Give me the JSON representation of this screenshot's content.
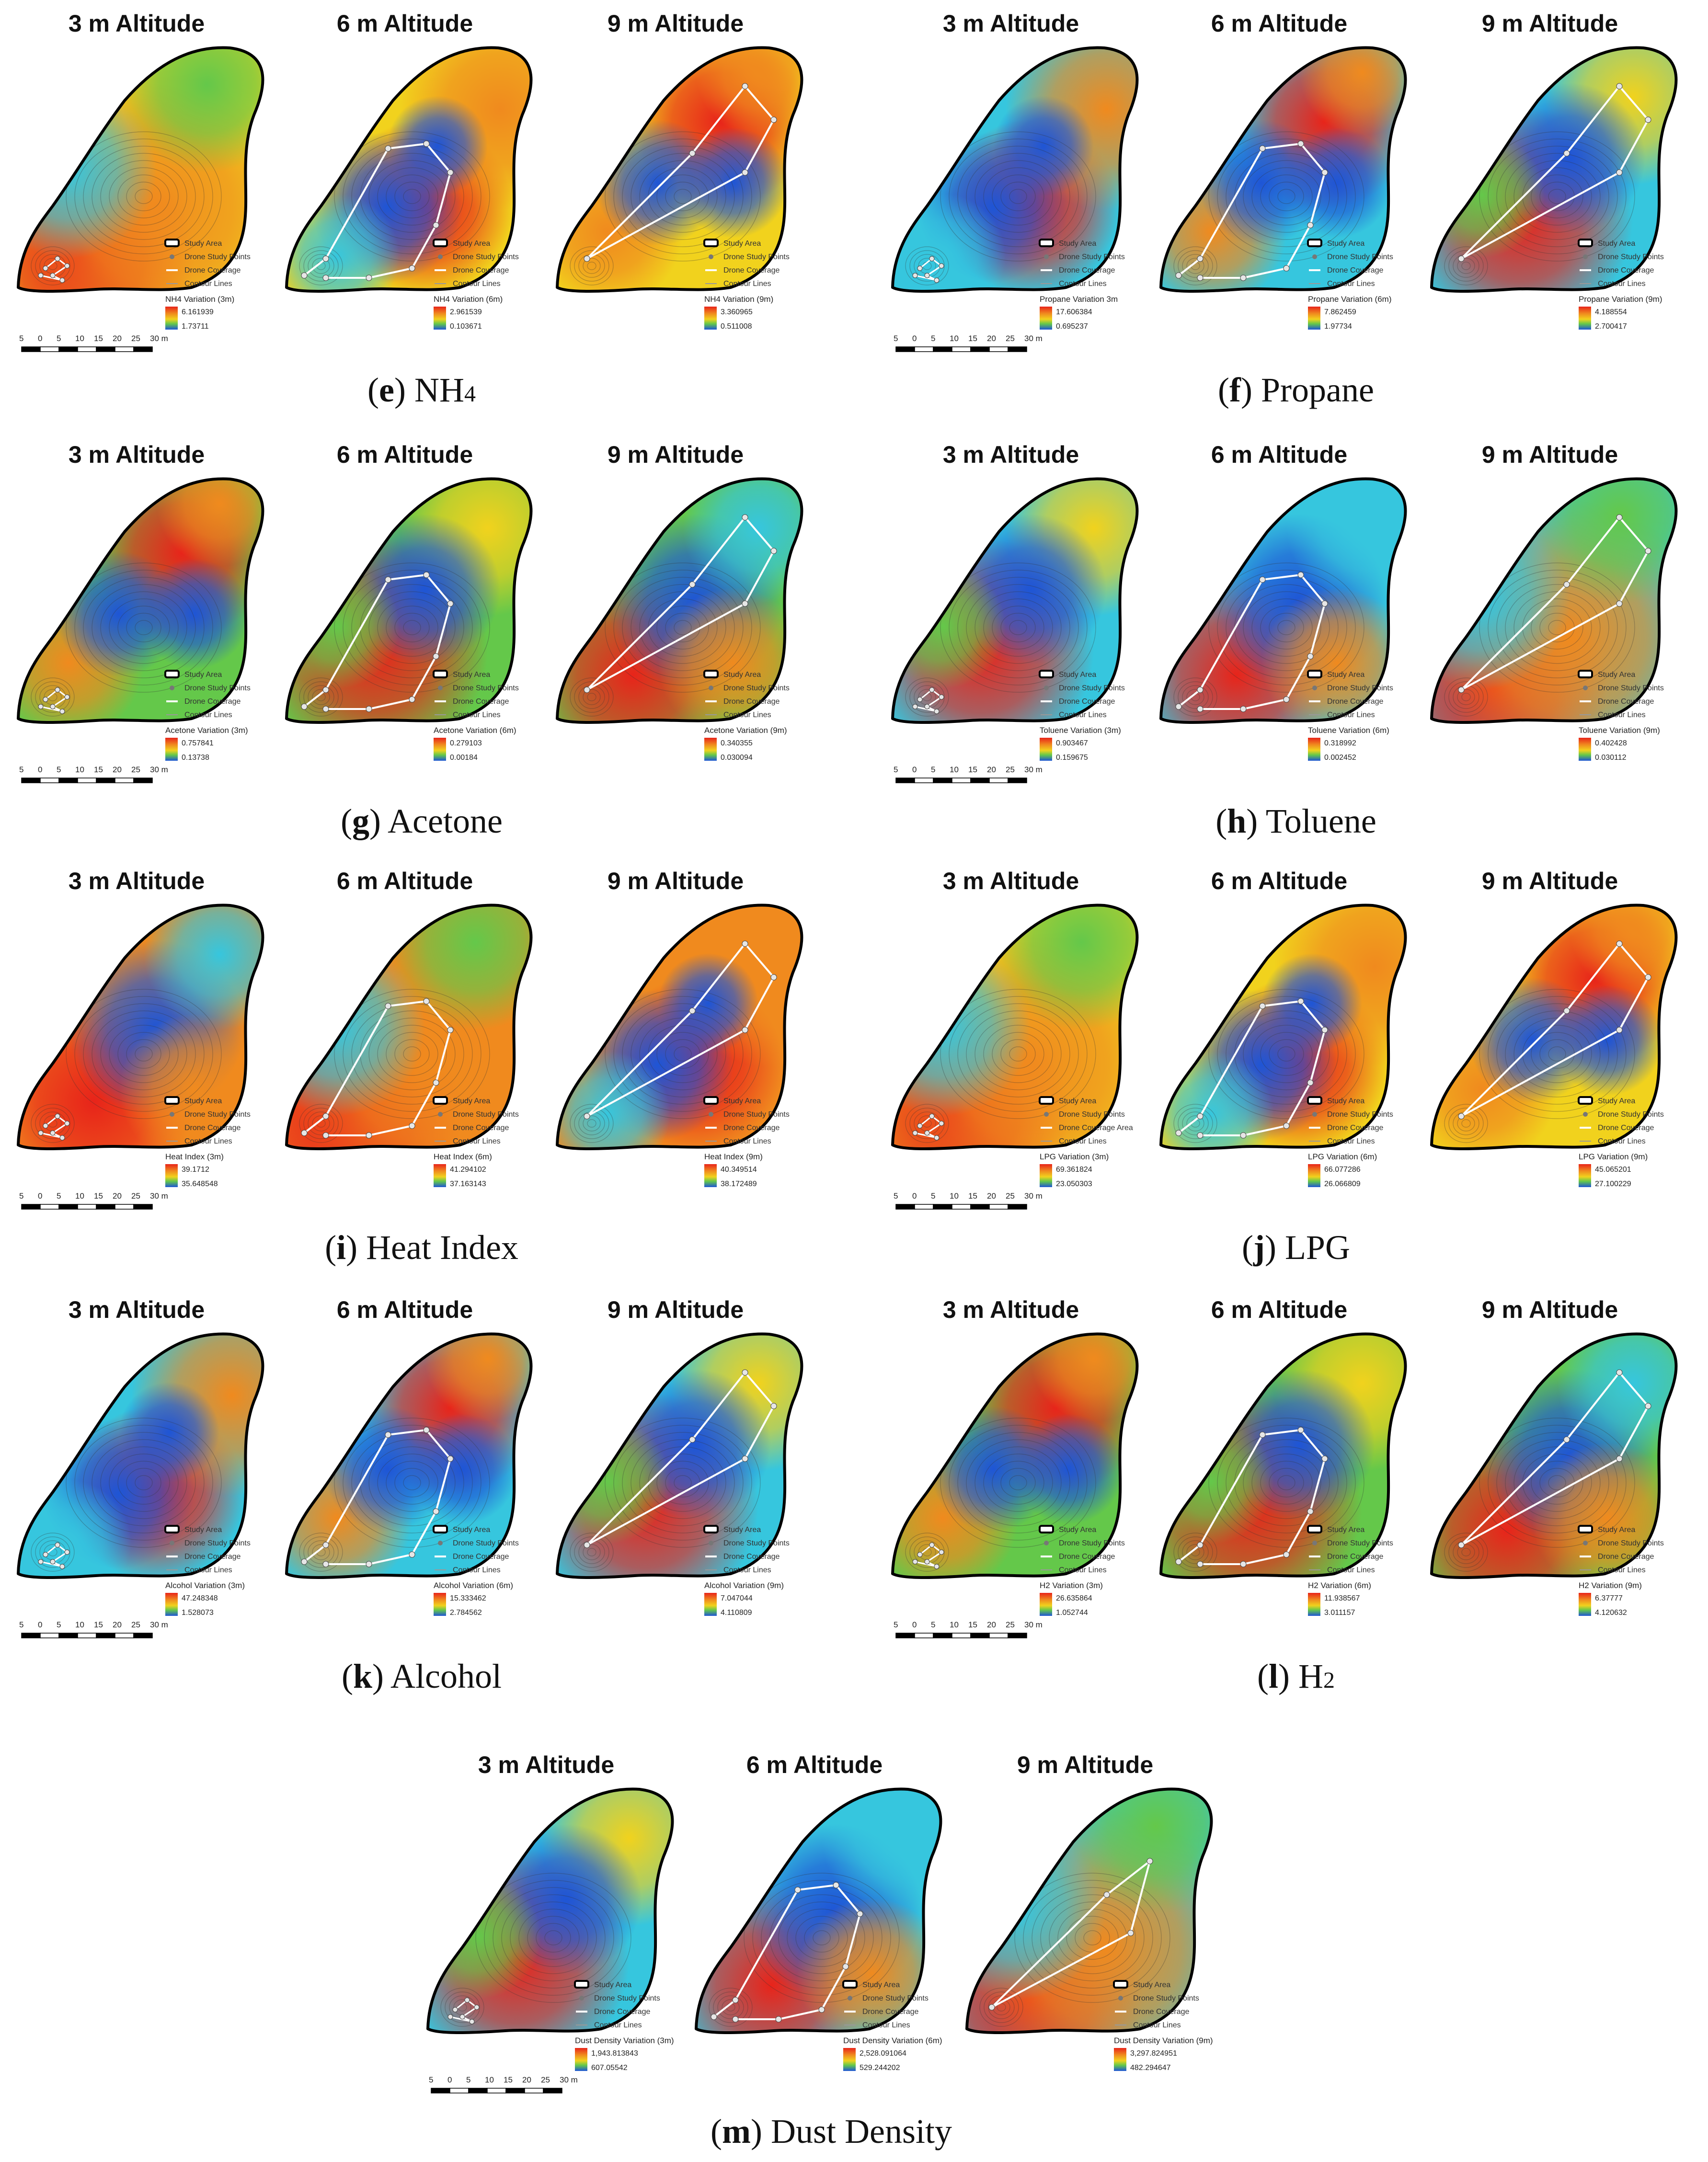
{
  "colors": {
    "red": "#e8241a",
    "orange": "#f08a1e",
    "yellow": "#f1d21d",
    "green": "#64c84a",
    "cyan": "#36c6de",
    "blue": "#1e55d6",
    "boundary": "#000000",
    "route": "#ffffff"
  },
  "altitude_titles": [
    "3 m Altitude",
    "6 m Altitude",
    "9 m Altitude"
  ],
  "legend_items": [
    "Study Area",
    "Drone Study Points",
    "Drone Coverage",
    "Contour Lines"
  ],
  "legend_items_variant": [
    "Study Area",
    "Drone Study Points",
    "Drone Coverage Area",
    "Contour Lines"
  ],
  "scale_labels": [
    "5",
    "0",
    "5",
    "10",
    "15",
    "20",
    "25",
    "30 m"
  ],
  "panels": [
    {
      "id": "e",
      "letter": "e",
      "name": "NH",
      "subscript": "4",
      "maps": [
        {
          "var": "NH4 Variation (3m)",
          "max": "6.161939",
          "min": "1.73711"
        },
        {
          "var": "NH4 Variation (6m)",
          "max": "2.961539",
          "min": "0.103671"
        },
        {
          "var": "NH4 Variation (9m)",
          "max": "3.360965",
          "min": "0.511008"
        }
      ]
    },
    {
      "id": "f",
      "letter": "f",
      "name": "Propane",
      "subscript": "",
      "maps": [
        {
          "var": "Propane Variation 3m",
          "max": "17.606384",
          "min": "0.695237"
        },
        {
          "var": "Propane Variation (6m)",
          "max": "7.862459",
          "min": "1.97734"
        },
        {
          "var": "Propane Variation (9m)",
          "max": "4.188554",
          "min": "2.700417"
        }
      ]
    },
    {
      "id": "g",
      "letter": "g",
      "name": "Acetone",
      "subscript": "",
      "maps": [
        {
          "var": "Acetone Variation (3m)",
          "max": "0.757841",
          "min": "0.13738"
        },
        {
          "var": "Acetone Variation (6m)",
          "max": "0.279103",
          "min": "0.00184"
        },
        {
          "var": "Acetone Variation (9m)",
          "max": "0.340355",
          "min": "0.030094"
        }
      ]
    },
    {
      "id": "h",
      "letter": "h",
      "name": "Toluene",
      "subscript": "",
      "maps": [
        {
          "var": "Toluene Variation (3m)",
          "max": "0.903467",
          "min": "0.159675"
        },
        {
          "var": "Toluene Variation (6m)",
          "max": "0.318992",
          "min": "0.002452"
        },
        {
          "var": "Toluene Variation (9m)",
          "max": "0.402428",
          "min": "0.030112"
        }
      ]
    },
    {
      "id": "i",
      "letter": "i",
      "name": "Heat Index",
      "subscript": "",
      "maps": [
        {
          "var": "Heat Index (3m)",
          "max": "39.1712",
          "min": "35.648548"
        },
        {
          "var": "Heat Index (6m)",
          "max": "41.294102",
          "min": "37.163143"
        },
        {
          "var": "Heat Index (9m)",
          "max": "40.349514",
          "min": "38.172489"
        }
      ]
    },
    {
      "id": "j",
      "letter": "j",
      "name": "LPG",
      "subscript": "",
      "maps": [
        {
          "var": "LPG Variation (3m)",
          "max": "69.361824",
          "min": "23.050303"
        },
        {
          "var": "LPG Variation (6m)",
          "max": "66.077286",
          "min": "26.066809"
        },
        {
          "var": "LPG Variation (9m)",
          "max": "45.065201",
          "min": "27.100229"
        }
      ]
    },
    {
      "id": "k",
      "letter": "k",
      "name": "Alcohol",
      "subscript": "",
      "maps": [
        {
          "var": "Alcohol Variation (3m)",
          "max": "47.248348",
          "min": "1.528073"
        },
        {
          "var": "Alcohol Variation (6m)",
          "max": "15.333462",
          "min": "2.784562"
        },
        {
          "var": "Alcohol Variation (9m)",
          "max": "7.047044",
          "min": "4.110809"
        }
      ]
    },
    {
      "id": "l",
      "letter": "l",
      "name": "H",
      "subscript": "2",
      "maps": [
        {
          "var": "H2 Variation (3m)",
          "max": "26.635864",
          "min": "1.052744"
        },
        {
          "var": "H2 Variation (6m)",
          "max": "11.938567",
          "min": "3.011157"
        },
        {
          "var": "H2 Variation (9m)",
          "max": "6.37777",
          "min": "4.120632"
        }
      ]
    },
    {
      "id": "m",
      "letter": "m",
      "name": "Dust Density",
      "subscript": "",
      "maps": [
        {
          "var": "Dust Density Variation (3m)",
          "max": "1,943.813843",
          "min": "607.05542"
        },
        {
          "var": "Dust Density Variation (6m)",
          "max": "2,528.091064",
          "min": "529.244202"
        },
        {
          "var": "Dust Density Variation (9m)",
          "max": "3,297.824951",
          "min": "482.294647"
        }
      ]
    }
  ]
}
